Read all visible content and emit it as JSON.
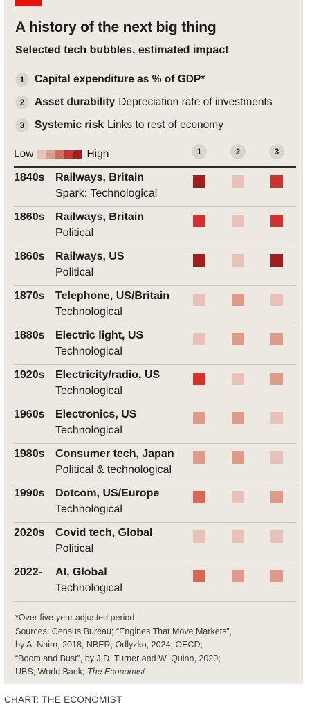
{
  "title": "A history of the next big thing",
  "subtitle": "Selected tech bubbles, estimated impact",
  "legend": [
    {
      "num": "1",
      "key": "Capital expenditure as % of GDP*",
      "desc": ""
    },
    {
      "num": "2",
      "key": "Asset durability",
      "desc": "Depreciation rate of investments"
    },
    {
      "num": "3",
      "key": "Systemic risk",
      "desc": "Links to rest of economy"
    }
  ],
  "scale": {
    "low": "Low",
    "high": "High",
    "levels": [
      1,
      2,
      3,
      4,
      5
    ]
  },
  "colors": {
    "level_1": "#e8c2b8",
    "level_2": "#df9b8a",
    "level_3": "#d66a57",
    "level_4": "#cf3330",
    "level_5": "#a21d1f",
    "accent": "#e3120b",
    "background": "#ebe9e1"
  },
  "chart_data": {
    "type": "table",
    "columns": [
      "1",
      "2",
      "3"
    ],
    "rows": [
      {
        "year": "1840s",
        "event": "Railways, Britain",
        "kind": "Spark: Technological",
        "values": [
          5,
          1,
          4
        ]
      },
      {
        "year": "1860s",
        "event": "Railways, Britain",
        "kind": "Political",
        "values": [
          4,
          1,
          4
        ]
      },
      {
        "year": "1860s",
        "event": "Railways, US",
        "kind": "Political",
        "values": [
          5,
          1,
          5
        ]
      },
      {
        "year": "1870s",
        "event": "Telephone, US/Britain",
        "kind": "Technological",
        "values": [
          1,
          2,
          1
        ]
      },
      {
        "year": "1880s",
        "event": "Electric light, US",
        "kind": "Technological",
        "values": [
          1,
          2,
          2
        ]
      },
      {
        "year": "1920s",
        "event": "Electricity/radio, US",
        "kind": "Technological",
        "values": [
          4,
          1,
          2
        ]
      },
      {
        "year": "1960s",
        "event": "Electronics, US",
        "kind": "Technological",
        "values": [
          2,
          2,
          1
        ]
      },
      {
        "year": "1980s",
        "event": "Consumer tech, Japan",
        "kind": "Political & technological",
        "values": [
          2,
          2,
          1
        ]
      },
      {
        "year": "1990s",
        "event": "Dotcom, US/Europe",
        "kind": "Technological",
        "values": [
          3,
          1,
          2
        ]
      },
      {
        "year": "2020s",
        "event": "Covid tech, Global",
        "kind": "Political",
        "values": [
          1,
          1,
          1
        ]
      },
      {
        "year": "2022-",
        "event": "AI, Global",
        "kind": "Technological",
        "values": [
          3,
          2,
          2
        ]
      }
    ]
  },
  "notes": [
    "*Over five-year adjusted period",
    "Sources: Census Bureau; “Engines That Move Markets”,",
    "by A. Nairn, 2018; NBER; Odlyzko, 2024; OECD;",
    "“Boom and Bust”, by J.D. Turner and W. Quinn, 2020;",
    "UBS; World Bank; The Economist"
  ],
  "credit": "CHART: THE ECONOMIST"
}
